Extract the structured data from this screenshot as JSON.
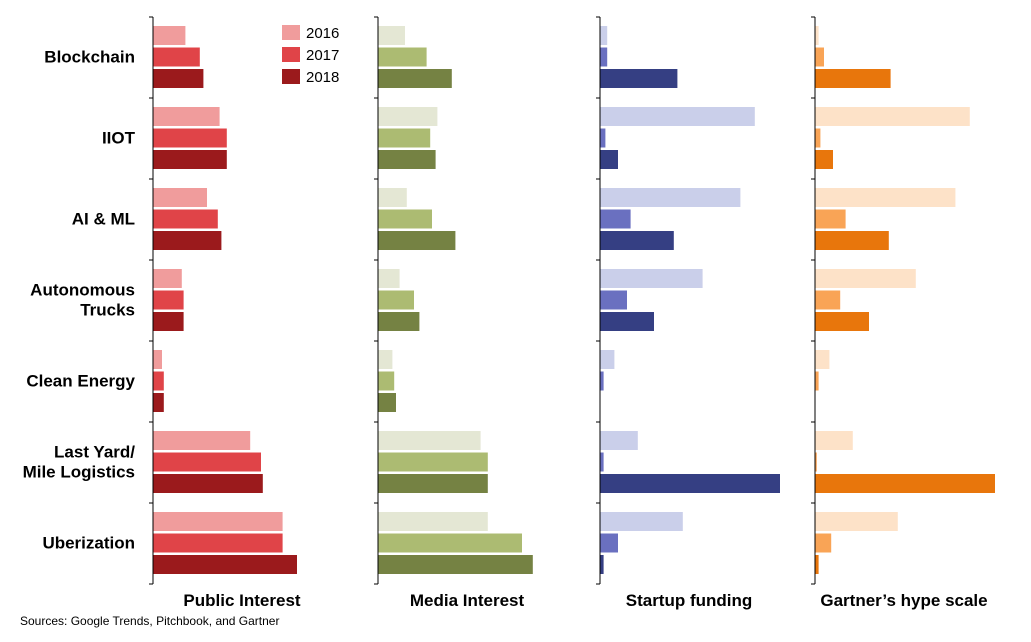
{
  "chart_data": {
    "type": "bar",
    "orientation": "horizontal",
    "categories": [
      "Blockchain",
      "IIOT",
      "AI & ML",
      "Autonomous Trucks",
      "Clean Energy",
      "Last Yard/ Mile Logistics",
      "Uberization"
    ],
    "category_label_lines": [
      [
        "Blockchain"
      ],
      [
        "IIOT"
      ],
      [
        "AI & ML"
      ],
      [
        "Autonomous",
        "Trucks"
      ],
      [
        "Clean Energy"
      ],
      [
        "Last Yard/",
        "Mile Logistics"
      ],
      [
        "Uberization"
      ]
    ],
    "legend": [
      "2016",
      "2017",
      "2018"
    ],
    "legend_colors": [
      "#f09c9c",
      "#e04448",
      "#9b1a1c"
    ],
    "source": "Sources: Google Trends, Pitchbook, and Gartner",
    "panels": [
      {
        "title": "Public Interest",
        "colors": [
          "#f09c9c",
          "#e04448",
          "#9b1a1c"
        ],
        "xlim": [
          0,
          100
        ],
        "series": [
          {
            "name": "2016",
            "values": [
              18,
              37,
              30,
              16,
              5,
              54,
              72
            ]
          },
          {
            "name": "2017",
            "values": [
              26,
              41,
              36,
              17,
              6,
              60,
              72
            ]
          },
          {
            "name": "2018",
            "values": [
              28,
              41,
              38,
              17,
              6,
              61,
              80
            ]
          }
        ]
      },
      {
        "title": "Media Interest",
        "colors": [
          "#e4e7d4",
          "#acbb72",
          "#758243"
        ],
        "xlim": [
          0,
          100
        ],
        "series": [
          {
            "name": "2016",
            "values": [
              15,
              33,
              16,
              12,
              8,
              57,
              61
            ]
          },
          {
            "name": "2017",
            "values": [
              27,
              29,
              30,
              20,
              9,
              61,
              80
            ]
          },
          {
            "name": "2018",
            "values": [
              41,
              32,
              43,
              23,
              10,
              61,
              86
            ]
          }
        ]
      },
      {
        "title": "Startup funding",
        "colors": [
          "#cacfea",
          "#6a70c0",
          "#353f83"
        ],
        "xlim": [
          0,
          100
        ],
        "series": [
          {
            "name": "2016",
            "values": [
              4,
              86,
              78,
              57,
              8,
              21,
              46
            ]
          },
          {
            "name": "2017",
            "values": [
              4,
              3,
              17,
              15,
              2,
              2,
              10
            ]
          },
          {
            "name": "2018",
            "values": [
              43,
              10,
              41,
              30,
              0,
              100,
              2
            ]
          }
        ]
      },
      {
        "title": "Gartner’s hype scale",
        "colors": [
          "#fde2c8",
          "#f9a456",
          "#e8760c"
        ],
        "xlim": [
          0,
          100
        ],
        "series": [
          {
            "name": "2016",
            "values": [
              2,
              86,
              78,
              56,
              8,
              21,
              46
            ]
          },
          {
            "name": "2017",
            "values": [
              5,
              3,
              17,
              14,
              2,
              1,
              9
            ]
          },
          {
            "name": "2018",
            "values": [
              42,
              10,
              41,
              30,
              0,
              100,
              2
            ]
          }
        ]
      }
    ]
  }
}
